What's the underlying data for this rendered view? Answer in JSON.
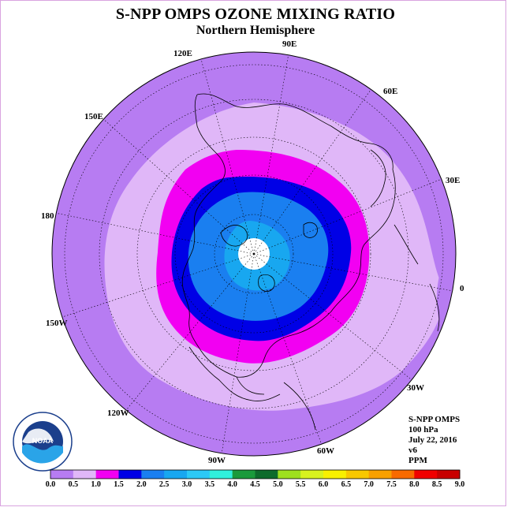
{
  "title": "S-NPP OMPS OZONE MIXING RATIO",
  "subtitle": "Northern Hemisphere",
  "longitude_labels": [
    "90E",
    "60E",
    "30E",
    "0",
    "30W",
    "60W",
    "90W",
    "120W",
    "150W",
    "180",
    "150E",
    "120E"
  ],
  "info": {
    "instrument": "S-NPP OMPS",
    "level": "100 hPa",
    "date": "July 22, 2016",
    "version": "v6",
    "units": "PPM"
  },
  "logo": {
    "text": "NOAA",
    "ring_text": "NATIONAL OCEANIC AND ATMOSPHERIC ADMINISTRATION · U.S. DEPARTMENT OF COMMERCE"
  },
  "colorbar": {
    "ticks": [
      "0.0",
      "0.5",
      "1.0",
      "1.5",
      "2.0",
      "2.5",
      "3.0",
      "3.5",
      "4.0",
      "4.5",
      "5.0",
      "5.5",
      "6.0",
      "6.5",
      "7.0",
      "7.5",
      "8.0",
      "8.5",
      "9.0"
    ],
    "colors": [
      "#b77cf2",
      "#e0b7f8",
      "#f200f2",
      "#0000e6",
      "#1a7ff0",
      "#18a7f0",
      "#2cc9f6",
      "#30f0dc",
      "#1a9a3b",
      "#0d6b2b",
      "#9ee01e",
      "#d8f21e",
      "#f8f000",
      "#f8c800",
      "#f8a000",
      "#f86a00",
      "#f00000",
      "#c80000"
    ]
  },
  "ozone_bands": [
    {
      "range": "0.0-0.5",
      "color": "#b77cf2"
    },
    {
      "range": "0.5-1.0",
      "color": "#e0b7f8"
    },
    {
      "range": "1.0-1.5",
      "color": "#f200f2"
    },
    {
      "range": "1.5-2.0",
      "color": "#0000e6"
    },
    {
      "range": "2.0-2.5",
      "color": "#1a7ff0"
    },
    {
      "range": "2.5-3.0",
      "color": "#18a7f0"
    }
  ]
}
